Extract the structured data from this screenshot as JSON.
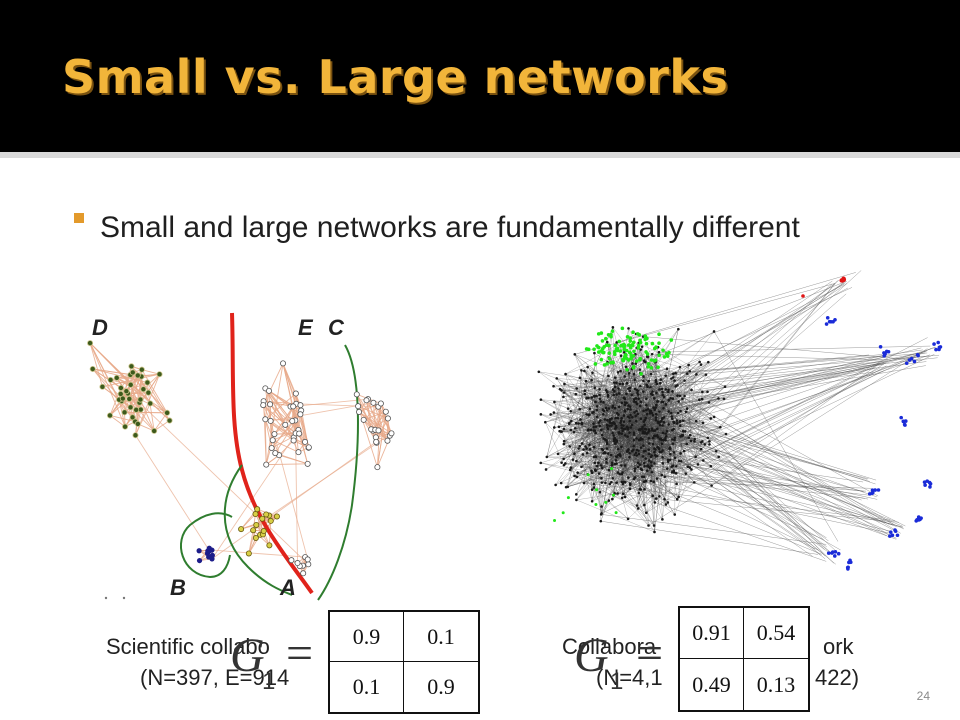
{
  "title": "Small vs. Large networks",
  "bullet": "Small and large networks are fundamentally different",
  "left_figure": {
    "region_labels": [
      "D",
      "E",
      "C",
      "B",
      "A"
    ],
    "caption_line1": "Scientific collabo",
    "caption_line2": "(N=397, E=914",
    "kron_symbol": "G",
    "kron_subscript": "1",
    "kron_equals": "=",
    "matrix": [
      [
        "0.9",
        "0.1"
      ],
      [
        "0.1",
        "0.9"
      ]
    ],
    "colors": {
      "edge": "#e7a98a",
      "node": "#3d5a1c",
      "boundary_red": "#e0231b",
      "boundary_green": "#2f7d2f",
      "cluster_b": "#1d1d8a"
    }
  },
  "right_figure": {
    "caption_line1_left": "Collabora",
    "caption_line1_right": "ork",
    "caption_line2_left": "(N=4,1",
    "caption_line2_right": "422)",
    "kron_symbol": "G",
    "kron_subscript": "1",
    "kron_equals": "=",
    "matrix": [
      [
        "0.91",
        "0.54"
      ],
      [
        "0.49",
        "0.13"
      ]
    ],
    "colors": {
      "core": "#1a1a1a",
      "green_cluster": "#22e81a",
      "blue_cluster": "#1a2bd8",
      "red_cluster": "#e01515"
    }
  },
  "slide_number": "24"
}
